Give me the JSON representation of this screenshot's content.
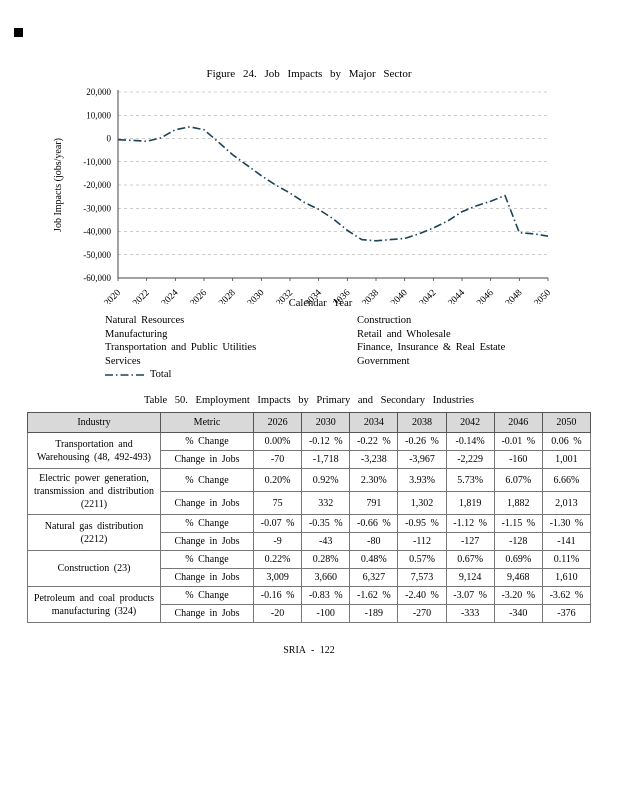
{
  "page": {
    "footer": "SRIA - 122"
  },
  "chart_data": {
    "type": "line",
    "title": "Figure 24. Job Impacts by Major Sector",
    "xlabel": "Calendar Year",
    "ylabel": "Job Impacts (jobs/year)",
    "xlim": [
      2020,
      2050
    ],
    "ylim": [
      -60000,
      20000
    ],
    "grid": "dashed-horizontal",
    "legend_position": "below",
    "xticks": [
      2020,
      2022,
      2024,
      2026,
      2028,
      2030,
      2032,
      2034,
      2036,
      2038,
      2040,
      2042,
      2044,
      2046,
      2048,
      2050
    ],
    "yticks": [
      {
        "value": 20000,
        "label": "20,000"
      },
      {
        "value": 10000,
        "label": "10,000"
      },
      {
        "value": 0,
        "label": "0"
      },
      {
        "value": -10000,
        "label": "-10,000"
      },
      {
        "value": -20000,
        "label": "-20,000"
      },
      {
        "value": -30000,
        "label": "-30,000"
      },
      {
        "value": -40000,
        "label": "-40,000"
      },
      {
        "value": -50000,
        "label": "-50,000"
      },
      {
        "value": -60000,
        "label": "-60,000"
      }
    ],
    "x": [
      2020,
      2021,
      2022,
      2023,
      2024,
      2025,
      2026,
      2027,
      2028,
      2029,
      2030,
      2031,
      2032,
      2033,
      2034,
      2035,
      2036,
      2037,
      2038,
      2039,
      2040,
      2041,
      2042,
      2043,
      2044,
      2045,
      2046,
      2047,
      2048,
      2049,
      2050
    ],
    "series": [
      {
        "name": "Total",
        "line_style": "dash-dot",
        "color": "#1c4257",
        "values": [
          -500,
          -800,
          -1200,
          300,
          3800,
          5000,
          3800,
          -1500,
          -7000,
          -11500,
          -16000,
          -20000,
          -23500,
          -27500,
          -30500,
          -34500,
          -39500,
          -43500,
          -44000,
          -43500,
          -43000,
          -41000,
          -38500,
          -35500,
          -31500,
          -29000,
          -27000,
          -24500,
          -40500,
          -41000,
          -42000
        ]
      }
    ]
  },
  "figure_legend": {
    "col1": [
      "Natural Resources",
      "Manufacturing",
      "Transportation and Public Utilities",
      "Services"
    ],
    "col2": [
      "Construction",
      "Retail and Wholesale",
      "Finance, Insurance & Real Estate",
      "Government"
    ],
    "total_label": "Total"
  },
  "table": {
    "title": "Table 50. Employment Impacts by Primary and Secondary Industries",
    "headers": [
      "Industry",
      "Metric",
      "2026",
      "2030",
      "2034",
      "2038",
      "2042",
      "2046",
      "2050"
    ],
    "rows": [
      {
        "industry": "Transportation and Warehousing (48, 492-493)",
        "metrics": [
          {
            "label": "% Change",
            "values": [
              "0.00%",
              "-0.12 %",
              "-0.22 %",
              "-0.26 %",
              "-0.14%",
              "-0.01 %",
              "0.06 %"
            ]
          },
          {
            "label": "Change in Jobs",
            "values": [
              "-70",
              "-1,718",
              "-3,238",
              "-3,967",
              "-2,229",
              "-160",
              "1,001"
            ]
          }
        ]
      },
      {
        "industry": "Electric power generation, transmission and distribution (2211)",
        "metrics": [
          {
            "label": "% Change",
            "values": [
              "0.20%",
              "0.92%",
              "2.30%",
              "3.93%",
              "5.73%",
              "6.07%",
              "6.66%"
            ]
          },
          {
            "label": "Change in Jobs",
            "values": [
              "75",
              "332",
              "791",
              "1,302",
              "1,819",
              "1,882",
              "2,013"
            ]
          }
        ]
      },
      {
        "industry": "Natural gas distribution (2212)",
        "metrics": [
          {
            "label": "% Change",
            "values": [
              "-0.07 %",
              "-0.35 %",
              "-0.66 %",
              "-0.95 %",
              "-1.12 %",
              "-1.15 %",
              "-1.30 %"
            ]
          },
          {
            "label": "Change in Jobs",
            "values": [
              "-9",
              "-43",
              "-80",
              "-112",
              "-127",
              "-128",
              "-141"
            ]
          }
        ]
      },
      {
        "industry": "Construction (23)",
        "metrics": [
          {
            "label": "% Change",
            "values": [
              "0.22%",
              "0.28%",
              "0.48%",
              "0.57%",
              "0.67%",
              "0.69%",
              "0.11%"
            ]
          },
          {
            "label": "Change in Jobs",
            "values": [
              "3,009",
              "3,660",
              "6,327",
              "7,573",
              "9,124",
              "9,468",
              "1,610"
            ]
          }
        ]
      },
      {
        "industry": "Petroleum and coal products manufacturing (324)",
        "metrics": [
          {
            "label": "% Change",
            "values": [
              "-0.16 %",
              "-0.83 %",
              "-1.62 %",
              "-2.40 %",
              "-3.07 %",
              "-3.20 %",
              "-3.62 %"
            ]
          },
          {
            "label": "Change in Jobs",
            "values": [
              "-20",
              "-100",
              "-189",
              "-270",
              "-333",
              "-340",
              "-376"
            ]
          }
        ]
      }
    ]
  }
}
